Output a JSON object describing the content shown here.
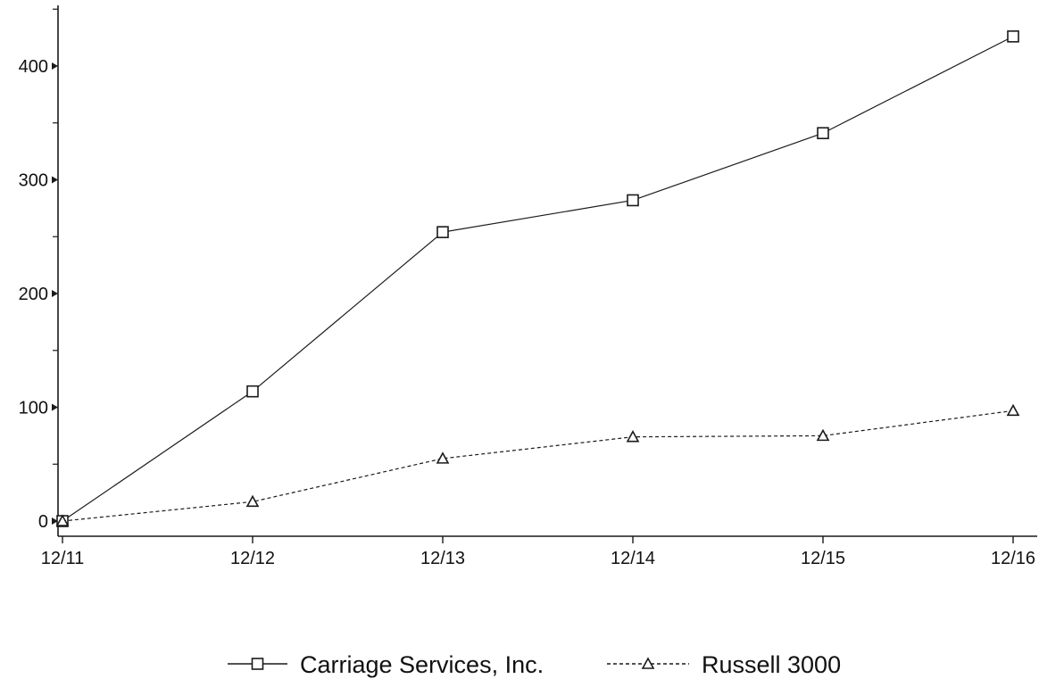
{
  "chart_data": {
    "type": "line",
    "x": [
      "12/11",
      "12/12",
      "12/13",
      "12/14",
      "12/15",
      "12/16"
    ],
    "ylim": [
      0,
      450
    ],
    "yticks": [
      0,
      100,
      200,
      300,
      400
    ],
    "ytick_labels": [
      "0",
      "100",
      "200",
      "300",
      "400"
    ],
    "grid": false,
    "legend_position": "bottom-center",
    "series": [
      {
        "name": "Carriage Services, Inc.",
        "marker": "square",
        "line_style": "solid",
        "color": "#1a1a1a",
        "values": [
          0,
          114,
          254,
          282,
          341,
          426
        ]
      },
      {
        "name": "Russell 3000",
        "marker": "triangle",
        "line_style": "dashed",
        "color": "#1a1a1a",
        "values": [
          0,
          17,
          55,
          74,
          75,
          97
        ]
      }
    ]
  }
}
